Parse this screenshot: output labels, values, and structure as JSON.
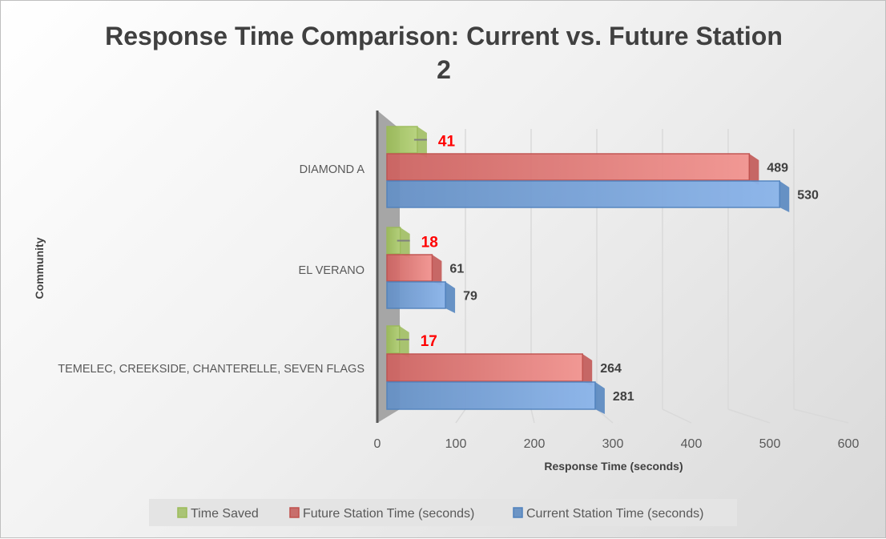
{
  "chart_data": {
    "type": "bar",
    "orientation": "horizontal",
    "title": "Response Time Comparison: Current vs. Future Station 2",
    "xlabel": "Response Time (seconds)",
    "ylabel": "Community",
    "xlim": [
      0,
      600
    ],
    "xticks": [
      0,
      100,
      200,
      300,
      400,
      500,
      600
    ],
    "grid": true,
    "legend_position": "bottom",
    "categories": [
      "DIAMOND A",
      "EL VERANO",
      "TEMELEC, CREEKSIDE, CHANTERELLE, SEVEN FLAGS"
    ],
    "series": [
      {
        "name": "Time Saved",
        "values": [
          41,
          18,
          17
        ],
        "color": "#9bbb59",
        "label_color": "#ff0000"
      },
      {
        "name": "Future Station Time (seconds)",
        "values": [
          489,
          61,
          264
        ],
        "color": "#c0504d",
        "label_color": "#404040"
      },
      {
        "name": "Current Station Time (seconds)",
        "values": [
          530,
          79,
          281
        ],
        "color": "#4f81bd",
        "label_color": "#404040"
      }
    ]
  }
}
